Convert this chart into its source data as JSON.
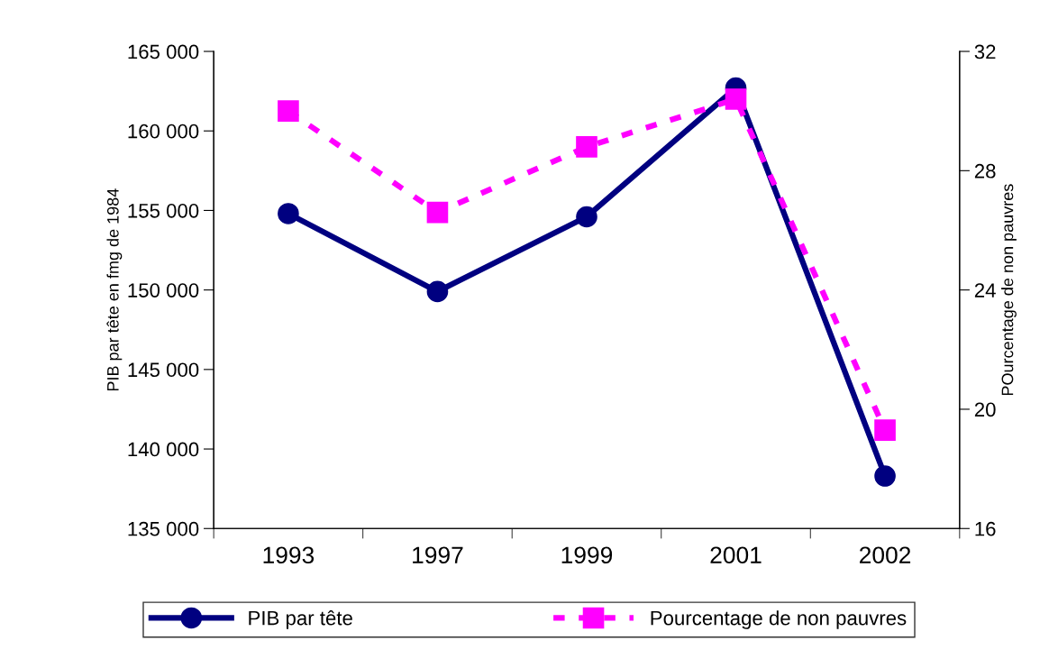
{
  "chart_data": {
    "type": "line",
    "categories": [
      "1993",
      "1997",
      "1999",
      "2001",
      "2002"
    ],
    "series": [
      {
        "name": "PIB par tête",
        "color": "#000080",
        "values": [
          154800,
          149900,
          154600,
          162700,
          138300
        ],
        "marker": "circle",
        "line_style": "solid"
      },
      {
        "name": "Pourcentage de non pauvres",
        "color": "#ff00ff",
        "values": [
          30.0,
          26.6,
          28.8,
          30.4,
          19.3
        ],
        "axis": "y2",
        "marker": "square",
        "line_style": "dashed"
      }
    ],
    "ylabel": "PIB par tête en fmg de 1984",
    "y2label": "POurcentage de non pauvres",
    "ylim": [
      135000,
      165000
    ],
    "yticks": [
      {
        "value": 135000,
        "label": "135 000"
      },
      {
        "value": 140000,
        "label": "140 000"
      },
      {
        "value": 145000,
        "label": "145 000"
      },
      {
        "value": 150000,
        "label": "150 000"
      },
      {
        "value": 155000,
        "label": "155 000"
      },
      {
        "value": 160000,
        "label": "160 000"
      },
      {
        "value": 165000,
        "label": "165 000"
      }
    ],
    "y2lim": [
      16,
      32
    ],
    "y2ticks": [
      16,
      20,
      24,
      28,
      32
    ],
    "grid": false,
    "legend": "bottom"
  }
}
